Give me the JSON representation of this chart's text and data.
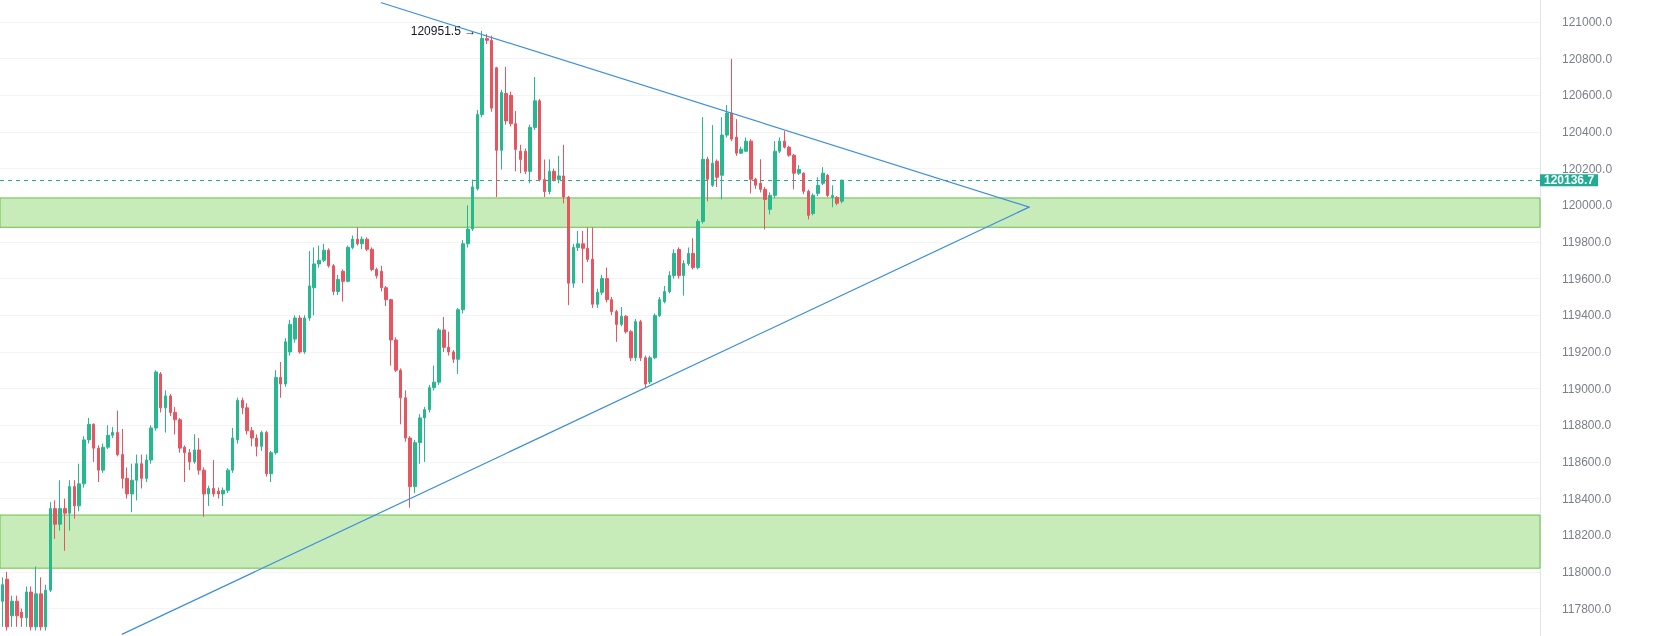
{
  "chart_data": {
    "type": "candlestick",
    "categories": [
      null,
      null,
      null,
      null,
      null,
      null,
      null,
      null,
      null,
      null,
      null,
      null,
      null,
      null,
      null,
      null,
      null,
      null,
      null,
      null,
      null,
      null,
      null,
      null,
      null,
      null,
      null,
      null,
      null,
      null,
      null,
      null,
      null,
      null,
      null,
      null,
      null,
      null,
      null,
      null,
      null,
      null,
      null,
      null,
      null,
      null,
      null,
      null,
      null,
      null,
      null,
      null,
      null,
      null,
      null,
      null,
      null,
      null,
      null,
      null,
      null,
      null,
      null,
      null,
      null,
      null,
      null,
      null,
      null,
      null,
      null,
      null,
      null,
      null,
      null,
      null,
      null,
      null,
      null,
      null,
      null,
      null,
      null,
      null,
      null,
      null,
      null,
      null,
      null,
      null,
      null,
      null,
      null,
      null,
      null,
      null,
      null,
      null,
      null,
      null,
      null,
      null,
      null,
      null,
      null,
      null,
      null,
      null,
      null,
      null,
      null,
      null,
      null,
      null,
      null,
      null,
      null,
      null,
      null,
      null,
      null,
      null,
      null,
      null,
      null,
      null,
      null,
      null,
      null,
      null,
      null,
      null,
      null,
      null,
      null,
      null,
      null,
      null,
      null,
      null,
      null,
      null,
      null,
      null,
      null,
      null,
      null,
      null,
      null,
      null,
      null,
      null,
      null,
      null,
      null,
      null,
      null,
      null,
      null,
      null,
      null,
      null,
      null,
      null,
      null,
      null,
      null,
      null,
      null,
      null,
      null,
      null,
      null,
      null,
      null,
      null,
      null,
      null,
      null,
      null,
      null,
      null,
      null,
      null,
      null,
      null,
      null,
      null,
      null,
      null,
      null,
      null,
      null,
      null,
      null,
      null,
      null,
      null,
      null,
      null,
      null,
      null,
      null,
      null,
      null,
      null,
      null,
      null,
      null,
      null,
      null,
      null,
      null,
      null,
      null,
      null,
      null,
      null,
      null,
      null,
      null,
      null,
      null,
      null,
      null,
      null,
      null,
      null,
      null,
      null,
      null,
      null,
      null,
      null,
      null,
      null,
      null,
      null,
      null,
      null,
      null,
      null,
      null,
      null,
      null,
      null,
      null,
      null,
      null,
      null,
      null,
      null,
      null,
      null,
      null,
      null,
      null,
      null,
      null,
      null,
      null,
      null,
      null,
      null,
      null,
      null,
      null,
      null,
      null,
      null,
      null,
      null,
      null,
      null,
      null,
      null,
      null,
      null,
      null,
      null,
      null,
      null,
      null,
      null,
      null,
      null,
      null,
      null,
      null,
      null,
      null,
      null,
      null,
      null,
      null,
      null,
      null,
      null,
      null,
      null,
      null,
      null,
      null,
      null,
      null,
      null,
      null,
      null,
      null,
      null,
      null,
      null,
      null,
      null,
      null,
      null,
      null,
      null,
      null,
      null,
      null
    ],
    "ohlc": [
      [
        117840,
        117970,
        117700,
        117930
      ],
      [
        117960,
        118000,
        117680,
        117700
      ],
      [
        117760,
        117870,
        117700,
        117840
      ],
      [
        117840,
        117870,
        117700,
        117760
      ],
      [
        117780,
        117800,
        117700,
        117750
      ],
      [
        117750,
        117920,
        117700,
        117890
      ],
      [
        117890,
        117920,
        117680,
        117700
      ],
      [
        117700,
        118030,
        117680,
        117880
      ],
      [
        117880,
        117970,
        117680,
        117700
      ],
      [
        117700,
        117930,
        117680,
        117900
      ],
      [
        117900,
        118380,
        117890,
        118345
      ],
      [
        118345,
        118390,
        118180,
        118260
      ],
      [
        118260,
        118500,
        118225,
        118345
      ],
      [
        118345,
        118400,
        118115,
        118320
      ],
      [
        118320,
        118500,
        118225,
        118465
      ],
      [
        118465,
        118500,
        118290,
        118360
      ],
      [
        118360,
        118590,
        118330,
        118480
      ],
      [
        118480,
        118740,
        118460,
        118720
      ],
      [
        118720,
        118840,
        118700,
        118805
      ],
      [
        118805,
        118810,
        118600,
        118675
      ],
      [
        118675,
        118690,
        118490,
        118555
      ],
      [
        118555,
        118700,
        118540,
        118680
      ],
      [
        118680,
        118800,
        118670,
        118745
      ],
      [
        118745,
        118790,
        118730,
        118760
      ],
      [
        118760,
        118880,
        118630,
        118640
      ],
      [
        118640,
        118780,
        118455,
        118510
      ],
      [
        118510,
        118570,
        118400,
        118425
      ],
      [
        118425,
        118590,
        118325,
        118500
      ],
      [
        118500,
        118640,
        118390,
        118590
      ],
      [
        118590,
        118640,
        118455,
        118510
      ],
      [
        118510,
        118640,
        118490,
        118610
      ],
      [
        118610,
        118800,
        118590,
        118785
      ],
      [
        118785,
        119100,
        118770,
        119090
      ],
      [
        119080,
        119090,
        118870,
        118895
      ],
      [
        118895,
        118990,
        118760,
        118960
      ],
      [
        118960,
        118970,
        118850,
        118870
      ],
      [
        118870,
        118900,
        118750,
        118830
      ],
      [
        118830,
        118840,
        118650,
        118675
      ],
      [
        118680,
        118690,
        118490,
        118650
      ],
      [
        118650,
        118670,
        118555,
        118600
      ],
      [
        118600,
        118750,
        118590,
        118665
      ],
      [
        118665,
        118730,
        118530,
        118555
      ],
      [
        118555,
        118570,
        118300,
        118425
      ],
      [
        118425,
        118470,
        118360,
        118455
      ],
      [
        118455,
        118610,
        118410,
        118425
      ],
      [
        118440,
        118460,
        118400,
        118425
      ],
      [
        118425,
        118460,
        118360,
        118445
      ],
      [
        118445,
        118565,
        118430,
        118555
      ],
      [
        118555,
        118785,
        118540,
        118730
      ],
      [
        118720,
        118950,
        118700,
        118935
      ],
      [
        118935,
        118950,
        118860,
        118895
      ],
      [
        118895,
        118920,
        118750,
        118770
      ],
      [
        118770,
        118790,
        118685,
        118730
      ],
      [
        118730,
        118750,
        118630,
        118685
      ],
      [
        118685,
        118770,
        118660,
        118760
      ],
      [
        118760,
        118770,
        118520,
        118535
      ],
      [
        118535,
        118660,
        118490,
        118650
      ],
      [
        118650,
        119100,
        118640,
        119060
      ],
      [
        119060,
        119145,
        118950,
        119025
      ],
      [
        119025,
        119275,
        119010,
        119255
      ],
      [
        119200,
        119375,
        119180,
        119350
      ],
      [
        119270,
        119400,
        119250,
        119385
      ],
      [
        119385,
        119400,
        119190,
        119200
      ],
      [
        119200,
        119400,
        119190,
        119385
      ],
      [
        119385,
        119750,
        119370,
        119560
      ],
      [
        119550,
        119770,
        119400,
        119680
      ],
      [
        119680,
        119780,
        119660,
        119700
      ],
      [
        119700,
        119790,
        119690,
        119755
      ],
      [
        119755,
        119765,
        119660,
        119670
      ],
      [
        119670,
        119680,
        119510,
        119530
      ],
      [
        119530,
        119620,
        119510,
        119595
      ],
      [
        119640,
        119650,
        119475,
        119585
      ],
      [
        119585,
        119780,
        119580,
        119770
      ],
      [
        119770,
        119835,
        119760,
        119815
      ],
      [
        119815,
        119880,
        119780,
        119790
      ],
      [
        119790,
        119830,
        119760,
        119815
      ],
      [
        119815,
        119825,
        119750,
        119760
      ],
      [
        119760,
        119770,
        119640,
        119650
      ],
      [
        119650,
        119660,
        119600,
        119615
      ],
      [
        119640,
        119670,
        119530,
        119550
      ],
      [
        119550,
        119560,
        119450,
        119485
      ],
      [
        119485,
        119490,
        119125,
        119265
      ],
      [
        119265,
        119280,
        119090,
        119100
      ],
      [
        119100,
        119110,
        118805,
        118950
      ],
      [
        118950,
        118990,
        118710,
        118730
      ],
      [
        118730,
        118740,
        118350,
        118465
      ],
      [
        118465,
        118720,
        118430,
        118705
      ],
      [
        118705,
        118860,
        118590,
        118840
      ],
      [
        118840,
        118900,
        118600,
        118885
      ],
      [
        118885,
        119020,
        118870,
        119005
      ],
      [
        119005,
        119125,
        118990,
        119035
      ],
      [
        119035,
        119330,
        119020,
        119320
      ],
      [
        119320,
        119390,
        119200,
        119225
      ],
      [
        119225,
        119310,
        119180,
        119200
      ],
      [
        119200,
        119210,
        119140,
        119160
      ],
      [
        119160,
        119440,
        119080,
        119430
      ],
      [
        119430,
        119810,
        119410,
        119790
      ],
      [
        119790,
        120000,
        119770,
        119870
      ],
      [
        119870,
        120140,
        119860,
        120100
      ],
      [
        120090,
        120520,
        120080,
        120495
      ],
      [
        120495,
        120951.5,
        120480,
        120910
      ],
      [
        120910,
        120935,
        120880,
        120900
      ],
      [
        120900,
        120925,
        120510,
        120530
      ],
      [
        120750,
        120755,
        120045,
        120300
      ],
      [
        120300,
        120630,
        120195,
        120615
      ],
      [
        120610,
        120755,
        120440,
        120460
      ],
      [
        120600,
        120620,
        120430,
        120445
      ],
      [
        120445,
        120515,
        120185,
        120305
      ],
      [
        120295,
        120330,
        120175,
        120250
      ],
      [
        120295,
        120310,
        120170,
        120185
      ],
      [
        120185,
        120440,
        120120,
        120425
      ],
      [
        120425,
        120700,
        120410,
        120570
      ],
      [
        120570,
        120580,
        120130,
        120140
      ],
      [
        120140,
        120250,
        120045,
        120075
      ],
      [
        120075,
        120250,
        120060,
        120185
      ],
      [
        120185,
        120200,
        120130,
        120140
      ],
      [
        120140,
        120270,
        120120,
        120160
      ],
      [
        120160,
        120330,
        120010,
        120045
      ],
      [
        120045,
        120050,
        119455,
        119575
      ],
      [
        119575,
        119790,
        119550,
        119770
      ],
      [
        119770,
        119860,
        119750,
        119790
      ],
      [
        119790,
        119860,
        119575,
        119765
      ],
      [
        119765,
        119880,
        119690,
        119705
      ],
      [
        119705,
        119880,
        119440,
        119460
      ],
      [
        119460,
        119545,
        119440,
        119525
      ],
      [
        119525,
        119620,
        119510,
        119600
      ],
      [
        119600,
        119660,
        119470,
        119485
      ],
      [
        119485,
        119500,
        119400,
        119420
      ],
      [
        119420,
        119430,
        119255,
        119350
      ],
      [
        119350,
        119445,
        119340,
        119395
      ],
      [
        119395,
        119400,
        119300,
        119310
      ],
      [
        119310,
        119320,
        119150,
        119168
      ],
      [
        119168,
        119380,
        119150,
        119365
      ],
      [
        119365,
        119375,
        119150,
        119168
      ],
      [
        119168,
        119180,
        119004,
        119025
      ],
      [
        119036,
        119180,
        119025,
        119168
      ],
      [
        119168,
        119410,
        119160,
        119398
      ],
      [
        119398,
        119500,
        119390,
        119485
      ],
      [
        119474,
        119560,
        119465,
        119529
      ],
      [
        119529,
        119640,
        119520,
        119617
      ],
      [
        119617,
        119760,
        119600,
        119737
      ],
      [
        119759,
        119770,
        119600,
        119617
      ],
      [
        119617,
        119700,
        119507,
        119682
      ],
      [
        119682,
        119770,
        119670,
        119737
      ],
      [
        119737,
        119820,
        119650,
        119660
      ],
      [
        119660,
        119925,
        119650,
        119912
      ],
      [
        119912,
        120481,
        119900,
        120251
      ],
      [
        120251,
        120265,
        120022,
        120142
      ],
      [
        120109,
        120437,
        120100,
        120229
      ],
      [
        120240,
        120250,
        120100,
        120153
      ],
      [
        120164,
        120480,
        120032,
        120383
      ],
      [
        120383,
        120547,
        120370,
        120503
      ],
      [
        120503,
        120799,
        120350,
        120361
      ],
      [
        120372,
        120470,
        120270,
        120284
      ],
      [
        120284,
        120320,
        120280,
        120306
      ],
      [
        120295,
        120370,
        120290,
        120350
      ],
      [
        120350,
        120360,
        120065,
        120142
      ],
      [
        120142,
        120150,
        120090,
        120109
      ],
      [
        120120,
        120251,
        120070,
        120087
      ],
      [
        120087,
        120100,
        119868,
        120032
      ],
      [
        119978,
        120070,
        119950,
        120054
      ],
      [
        120054,
        120350,
        120040,
        120295
      ],
      [
        120295,
        120370,
        120285,
        120350
      ],
      [
        120350,
        120405,
        120310,
        120317
      ],
      [
        120317,
        120325,
        120265,
        120273
      ],
      [
        120273,
        120280,
        120087,
        120175
      ],
      [
        120175,
        120219,
        120165,
        120195
      ],
      [
        120175,
        120180,
        120060,
        120076
      ],
      [
        120076,
        120085,
        119923,
        119945
      ],
      [
        119955,
        120065,
        119945,
        120054
      ],
      [
        120065,
        120153,
        120050,
        120109
      ],
      [
        120120,
        120208,
        120110,
        120175
      ],
      [
        120164,
        120170,
        120045,
        120054
      ],
      [
        120043,
        120109,
        119989,
        120054
      ],
      [
        120043,
        120050,
        120000,
        120011
      ],
      [
        120022,
        120140,
        120010,
        120136.7
      ],
      null,
      null,
      null,
      null,
      null,
      null,
      null,
      null,
      null,
      null,
      null,
      null,
      null,
      null,
      null,
      null,
      null,
      null,
      null,
      null,
      null,
      null,
      null,
      null,
      null,
      null,
      null,
      null,
      null,
      null,
      null,
      null,
      null,
      null,
      null,
      null,
      null,
      null,
      null,
      null,
      null,
      null,
      null,
      null,
      null,
      null,
      null,
      null,
      null,
      null,
      null,
      null,
      null,
      null,
      null,
      null,
      null,
      null,
      null,
      null,
      null,
      null,
      null,
      null,
      null,
      null,
      null,
      null,
      null,
      null,
      null,
      null,
      null,
      null,
      null,
      null,
      null,
      null,
      null,
      null,
      null,
      null,
      null,
      null,
      null,
      null,
      null,
      null,
      null,
      null,
      null,
      null,
      null,
      null,
      null,
      null,
      null,
      null,
      null,
      null,
      null,
      null,
      null,
      null,
      null,
      null,
      null,
      null,
      null,
      null,
      null,
      null,
      null,
      null,
      null,
      null,
      null,
      null,
      null,
      null,
      null,
      null,
      null,
      null,
      null,
      null,
      null,
      null,
      null,
      null,
      null,
      null,
      null,
      null,
      null,
      null,
      null,
      null,
      null,
      null,
      null,
      null,
      null,
      null,
      null
    ],
    "colors": [
      "#26b88f",
      "#e85560",
      "#26b88f",
      "#e85560",
      "#e85560",
      "#26b88f",
      "#e85560",
      "#26b88f",
      "#e85560",
      "#26b88f",
      "#26b88f",
      "#e85560",
      "#26b88f",
      "#e85560",
      "#26b88f",
      "#e85560",
      "#26b88f",
      "#26b88f",
      "#26b88f",
      "#e85560",
      "#e85560",
      "#26b88f",
      "#26b88f",
      "#26b88f",
      "#e85560",
      "#e85560",
      "#e85560",
      "#26b88f",
      "#26b88f",
      "#e85560",
      "#26b88f",
      "#26b88f",
      "#26b88f",
      "#e85560",
      "#26b88f",
      "#e85560",
      "#e85560",
      "#e85560",
      "#e85560",
      "#e85560",
      "#26b88f",
      "#e85560",
      "#e85560",
      "#26b88f",
      "#e85560",
      "#e85560",
      "#26b88f",
      "#26b88f",
      "#26b88f",
      "#26b88f",
      "#e85560",
      "#e85560",
      "#e85560",
      "#e85560",
      "#26b88f",
      "#e85560",
      "#26b88f",
      "#26b88f",
      "#e85560",
      "#26b88f",
      "#26b88f",
      "#26b88f",
      "#e85560",
      "#26b88f",
      "#26b88f",
      "#26b88f",
      "#26b88f",
      "#26b88f",
      "#e85560",
      "#e85560",
      "#26b88f",
      "#e85560",
      "#26b88f",
      "#26b88f",
      "#e85560",
      "#26b88f",
      "#e85560",
      "#e85560",
      "#e85560",
      "#e85560",
      "#e85560",
      "#e85560",
      "#e85560",
      "#e85560",
      "#e85560",
      "#e85560",
      "#26b88f",
      "#26b88f",
      "#26b88f",
      "#26b88f",
      "#26b88f",
      "#26b88f",
      "#e85560",
      "#e85560",
      "#e85560",
      "#26b88f",
      "#26b88f",
      "#26b88f",
      "#26b88f",
      "#26b88f",
      "#26b88f",
      "#e85560",
      "#e85560",
      "#e85560",
      "#26b88f",
      "#e85560",
      "#e85560",
      "#e85560",
      "#e85560",
      "#e85560",
      "#26b88f",
      "#26b88f",
      "#e85560",
      "#e85560",
      "#26b88f",
      "#e85560",
      "#26b88f",
      "#e85560",
      "#e85560",
      "#26b88f",
      "#26b88f",
      "#e85560",
      "#e85560",
      "#e85560",
      "#26b88f",
      "#26b88f",
      "#e85560",
      "#e85560",
      "#e85560",
      "#26b88f",
      "#e85560",
      "#e85560",
      "#26b88f",
      "#e85560",
      "#e85560",
      "#26b88f",
      "#26b88f",
      "#26b88f",
      "#26b88f",
      "#26b88f",
      "#26b88f",
      "#e85560",
      "#26b88f",
      "#26b88f",
      "#e85560",
      "#26b88f",
      "#26b88f",
      "#e85560",
      "#26b88f",
      "#e85560",
      "#26b88f",
      "#26b88f",
      "#e85560",
      "#e85560",
      "#26b88f",
      "#26b88f",
      "#e85560",
      "#e85560",
      "#e85560",
      "#e85560",
      "#26b88f",
      "#26b88f",
      "#26b88f",
      "#e85560",
      "#e85560",
      "#e85560",
      "#26b88f",
      "#e85560",
      "#e85560",
      "#26b88f",
      "#26b88f",
      "#26b88f",
      "#e85560",
      "#26b88f",
      "#e85560",
      "#26b88f",
      null,
      null,
      null,
      null,
      null,
      null,
      null,
      null,
      null,
      null,
      null,
      null,
      null,
      null,
      null,
      null,
      null,
      null,
      null,
      null,
      null,
      null,
      null,
      null,
      null,
      null,
      null,
      null,
      null,
      null,
      null,
      null,
      null,
      null,
      null,
      null,
      null,
      null,
      null,
      null,
      null,
      null,
      null,
      null,
      null,
      null,
      null,
      null,
      null,
      null,
      null,
      null,
      null,
      null,
      null,
      null,
      null,
      null,
      null,
      null,
      null,
      null,
      null,
      null,
      null,
      null,
      null,
      null,
      null,
      null,
      null,
      null,
      null,
      null,
      null,
      null,
      null,
      null,
      null,
      null,
      null,
      null,
      null,
      null,
      null,
      null,
      null,
      null,
      null,
      null,
      null,
      null,
      null,
      null,
      null,
      null,
      null,
      null,
      null,
      null,
      null,
      null,
      null,
      null,
      null,
      null,
      null,
      null,
      null,
      null,
      null,
      null,
      null,
      null,
      null,
      null,
      null,
      null,
      null,
      null,
      null,
      null,
      null,
      null,
      null,
      null,
      null,
      null,
      null,
      null,
      null,
      null,
      null,
      null,
      null,
      null,
      null,
      null,
      null,
      null,
      null,
      null,
      null,
      null,
      null
    ],
    "series": [
      {
        "type": "line",
        "color": "#3d8fdb",
        "values": [
          null,
          null,
          null,
          null,
          null,
          null,
          null,
          null,
          null,
          null,
          null,
          null,
          null,
          null,
          null,
          null,
          null,
          null,
          null,
          null,
          null,
          null,
          null,
          null,
          null,
          null,
          null,
          null,
          null,
          null,
          null,
          null,
          null,
          null,
          null,
          null,
          null,
          null,
          null,
          null,
          null,
          null,
          null,
          null,
          null,
          null,
          null,
          null,
          null,
          null,
          null,
          null,
          null,
          null,
          null,
          null,
          null,
          null,
          null,
          null,
          null,
          null,
          null,
          null,
          null,
          null,
          null,
          null,
          null,
          null,
          null,
          null,
          null,
          null,
          null,
          null,
          null,
          null,
          null,
          121105,
          null,
          null,
          null,
          null,
          null,
          null,
          null,
          null,
          null,
          null,
          null,
          null,
          null,
          null,
          null,
          null,
          null,
          null,
          null,
          null,
          null,
          null,
          null,
          null,
          null,
          null,
          null,
          null,
          null,
          null,
          null,
          null,
          null,
          null,
          null,
          null,
          null,
          null,
          null,
          null,
          null,
          null,
          null,
          null,
          null,
          null,
          null,
          null,
          null,
          null,
          null,
          null,
          null,
          null,
          null,
          null,
          null,
          null,
          null,
          null,
          null,
          null,
          null,
          null,
          null,
          null,
          null,
          null,
          null,
          null,
          null,
          null,
          null,
          null,
          null,
          null,
          null,
          null,
          null,
          null,
          null,
          null,
          null,
          null,
          null,
          null,
          null,
          null,
          null,
          null,
          null,
          null,
          null,
          null,
          null,
          null,
          null,
          null,
          null,
          null,
          null,
          null,
          null,
          null,
          null,
          null,
          null,
          null,
          null,
          null,
          null,
          null,
          null,
          null,
          null,
          null,
          null,
          null,
          null,
          null,
          null,
          null,
          null,
          null,
          null,
          null,
          null,
          null,
          null,
          null,
          null,
          null,
          null,
          null,
          119990,
          null,
          null,
          null,
          null,
          null,
          null,
          null,
          null,
          null,
          null,
          null,
          null,
          null,
          null,
          null,
          null,
          null,
          null,
          null,
          null,
          null,
          null,
          null,
          null,
          null,
          null,
          null,
          null,
          null,
          null,
          null,
          null,
          null,
          null,
          null,
          null,
          null,
          null,
          null,
          null,
          null,
          null,
          null,
          null,
          null,
          null,
          null,
          null,
          null,
          null,
          null,
          null,
          null,
          null,
          null,
          null,
          null,
          null,
          null,
          null,
          null,
          null,
          null,
          null,
          null,
          null,
          null,
          null,
          null,
          null,
          null,
          null,
          null,
          null,
          null,
          null,
          null,
          null,
          null,
          null,
          null,
          null,
          null,
          null,
          null,
          null,
          null,
          null,
          null,
          null,
          null,
          null,
          null,
          null,
          null,
          null,
          null,
          null,
          null,
          null,
          null,
          null,
          null,
          null,
          null,
          null
        ]
      },
      {
        "type": "line",
        "color": "#3d8fdb",
        "values": [
          null,
          null,
          null,
          null,
          null,
          null,
          null,
          null,
          null,
          null,
          null,
          null,
          null,
          null,
          null,
          null,
          null,
          null,
          null,
          null,
          null,
          null,
          null,
          null,
          null,
          117660,
          null,
          null,
          null,
          null,
          null,
          null,
          null,
          null,
          null,
          null,
          null,
          null,
          null,
          null,
          null,
          null,
          null,
          null,
          null,
          null,
          null,
          null,
          null,
          null,
          null,
          null,
          null,
          null,
          null,
          null,
          null,
          null,
          null,
          null,
          null,
          null,
          null,
          null,
          null,
          null,
          null,
          null,
          null,
          null,
          null,
          null,
          null,
          null,
          null,
          null,
          null,
          null,
          null,
          null,
          null,
          null,
          null,
          null,
          null,
          null,
          null,
          null,
          null,
          null,
          null,
          null,
          null,
          null,
          null,
          null,
          null,
          null,
          null,
          null,
          null,
          null,
          null,
          null,
          null,
          null,
          null,
          null,
          null,
          null,
          null,
          null,
          null,
          null,
          null,
          null,
          null,
          null,
          null,
          null,
          null,
          null,
          null,
          null,
          null,
          null,
          null,
          null,
          null,
          null,
          null,
          null,
          null,
          null,
          null,
          null,
          null,
          null,
          null,
          null,
          null,
          null,
          null,
          null,
          null,
          null,
          null,
          null,
          null,
          null,
          null,
          null,
          null,
          null,
          null,
          null,
          null,
          null,
          null,
          null,
          null,
          null,
          null,
          null,
          null,
          null,
          null,
          null,
          null,
          null,
          null,
          null,
          null,
          null,
          null,
          null,
          null,
          null,
          null,
          null,
          null,
          null,
          null,
          null,
          null,
          null,
          null,
          null,
          null,
          null,
          null,
          null,
          null,
          null,
          null,
          null,
          null,
          null,
          null,
          null,
          null,
          null,
          null,
          null,
          null,
          null,
          null,
          null,
          null,
          null,
          null,
          null,
          null,
          null,
          119990,
          null,
          null,
          null,
          null,
          null,
          null,
          null,
          null,
          null,
          null,
          null,
          null,
          null,
          null,
          null,
          null,
          null,
          null,
          null,
          null,
          null,
          null,
          null,
          null,
          null,
          null,
          null,
          null,
          null,
          null,
          null,
          null,
          null,
          null,
          null,
          null,
          null,
          null,
          null,
          null,
          null,
          null,
          null,
          null,
          null,
          null,
          null,
          null,
          null,
          null,
          null,
          null,
          null,
          null,
          null,
          null,
          null,
          null,
          null,
          null,
          null,
          null,
          null,
          null,
          null,
          null,
          null,
          null,
          null,
          null,
          null,
          null,
          null,
          null,
          null,
          null,
          null,
          null,
          null,
          null,
          null,
          null,
          null,
          null,
          null,
          null,
          null,
          null,
          null,
          null,
          null,
          null,
          null,
          null,
          null,
          null,
          null,
          null,
          null,
          null,
          null,
          null,
          null,
          null,
          null,
          null
        ]
      }
    ],
    "ylim": [
      117650,
      121120
    ],
    "yticks": [
      {
        "value": 117800,
        "label": "117800.0"
      },
      {
        "value": 118000,
        "label": "118000.0"
      },
      {
        "value": 118200,
        "label": "118200.0"
      },
      {
        "value": 118400,
        "label": "118400.0"
      },
      {
        "value": 118600,
        "label": "118600.0"
      },
      {
        "value": 118800,
        "label": "118800.0"
      },
      {
        "value": 119000,
        "label": "119000.0"
      },
      {
        "value": 119200,
        "label": "119200.0"
      },
      {
        "value": 119400,
        "label": "119400.0"
      },
      {
        "value": 119600,
        "label": "119600.0"
      },
      {
        "value": 119800,
        "label": "119800.0"
      },
      {
        "value": 120000,
        "label": "120000.0"
      },
      {
        "value": 120200,
        "label": "120200.0"
      },
      {
        "value": 120400,
        "label": "120400.0"
      },
      {
        "value": 120600,
        "label": "120600.0"
      },
      {
        "value": 120800,
        "label": "120800.0"
      },
      {
        "value": 121000,
        "label": "121000.0"
      }
    ],
    "tick_labels": "y",
    "grid": "y",
    "ref_lines": [
      {
        "axis": "y",
        "value": 120136.7,
        "label": "120136.7",
        "color": "#22ab94",
        "line_style": "dashed"
      }
    ],
    "bands": [
      {
        "axis": "y",
        "from": 119880,
        "to": 120040,
        "color": "#c8ebba"
      },
      {
        "axis": "y",
        "from": 118020,
        "to": 118310,
        "color": "#c8ebba"
      }
    ],
    "annotations": [
      "120951.5 →"
    ]
  }
}
